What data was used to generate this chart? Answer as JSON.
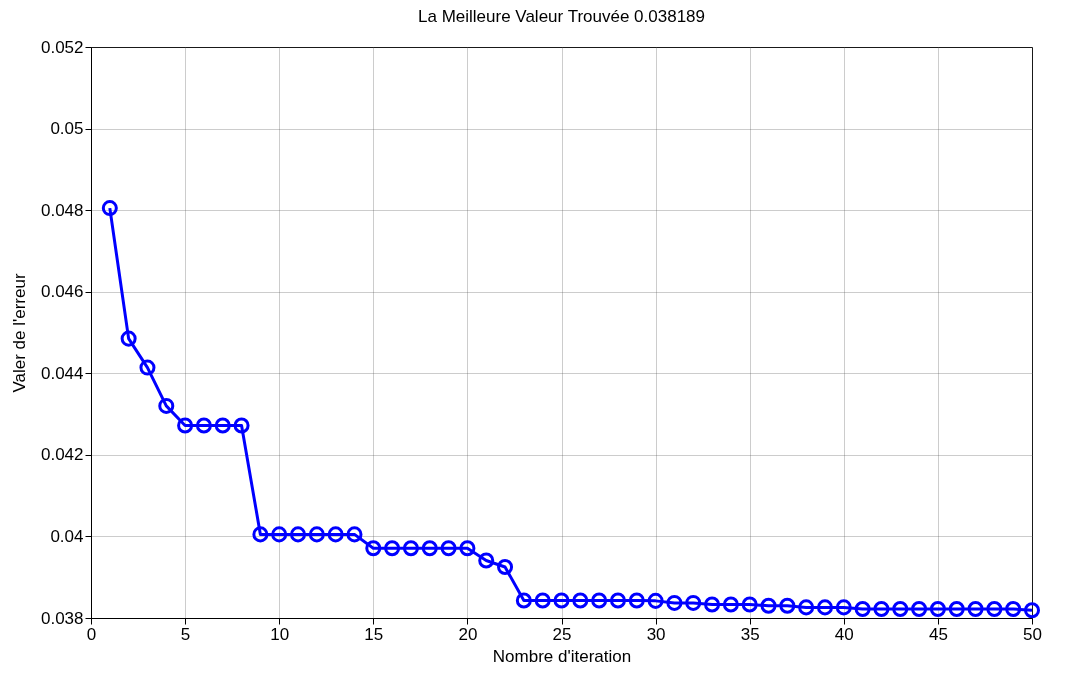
{
  "chart_data": {
    "type": "line",
    "title": "La Meilleure Valeur Trouvée 0.038189",
    "xlabel": "Nombre d'iteration",
    "ylabel": "Valer de l'erreur",
    "x": [
      1,
      2,
      3,
      4,
      5,
      6,
      7,
      8,
      9,
      10,
      11,
      12,
      13,
      14,
      15,
      16,
      17,
      18,
      19,
      20,
      21,
      22,
      23,
      24,
      25,
      26,
      27,
      28,
      29,
      30,
      31,
      32,
      33,
      34,
      35,
      36,
      37,
      38,
      39,
      40,
      41,
      42,
      43,
      44,
      45,
      46,
      47,
      48,
      49,
      50
    ],
    "series": [
      {
        "color": "#0000ff",
        "values": [
          0.04805,
          0.04485,
          0.04414,
          0.0432,
          0.04272,
          0.04272,
          0.04272,
          0.04272,
          0.04005,
          0.04005,
          0.04005,
          0.04005,
          0.04005,
          0.04005,
          0.03971,
          0.03971,
          0.03971,
          0.03971,
          0.03971,
          0.03971,
          0.03941,
          0.03925,
          0.03843,
          0.03843,
          0.03843,
          0.03843,
          0.03843,
          0.03843,
          0.03843,
          0.03842,
          0.03837,
          0.03837,
          0.03833,
          0.03833,
          0.03833,
          0.0383,
          0.0383,
          0.03826,
          0.03826,
          0.03826,
          0.03822,
          0.03822,
          0.03822,
          0.03822,
          0.03822,
          0.03822,
          0.03822,
          0.03822,
          0.03822,
          0.038189
        ]
      }
    ],
    "xlim": [
      0,
      50
    ],
    "xticks": [
      0,
      5,
      10,
      15,
      20,
      25,
      30,
      35,
      40,
      45,
      50
    ],
    "ylim": [
      0.038,
      0.052
    ],
    "yticks": [
      0.038,
      0.04,
      0.042,
      0.044,
      0.046,
      0.048,
      0.05,
      0.052
    ],
    "grid": true,
    "marker": "circle",
    "line_style": "solid"
  }
}
